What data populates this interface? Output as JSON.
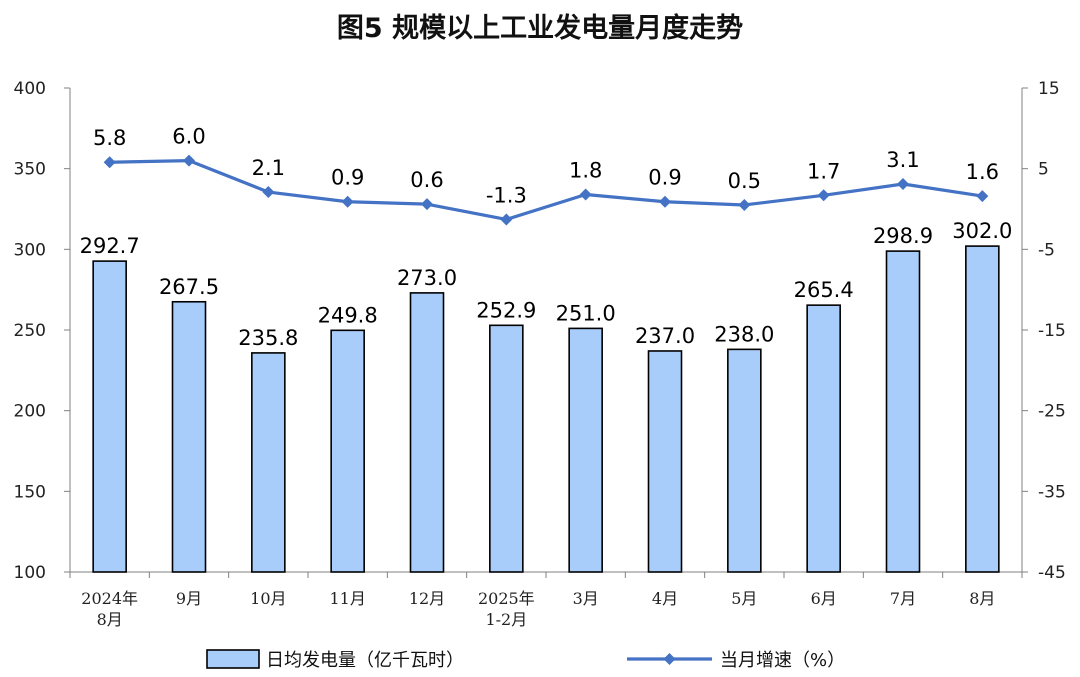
{
  "chart_data": {
    "type": "bar",
    "title": "图5  规模以上工业发电量月度走势",
    "categories": [
      [
        "2024年",
        "8月"
      ],
      [
        "9月"
      ],
      [
        "10月"
      ],
      [
        "11月"
      ],
      [
        "12月"
      ],
      [
        "2025年",
        "1-2月"
      ],
      [
        "3月"
      ],
      [
        "4月"
      ],
      [
        "5月"
      ],
      [
        "6月"
      ],
      [
        "7月"
      ],
      [
        "8月"
      ]
    ],
    "series": [
      {
        "name": "日均发电量（亿千瓦时）",
        "type": "bar",
        "axis": "left",
        "color": "#a9cdfa",
        "values": [
          292.7,
          267.5,
          235.8,
          249.8,
          273.0,
          252.9,
          251.0,
          237.0,
          238.0,
          265.4,
          298.9,
          302.0
        ],
        "labels": [
          "292.7",
          "267.5",
          "235.8",
          "249.8",
          "273.0",
          "252.9",
          "251.0",
          "237.0",
          "238.0",
          "265.4",
          "298.9",
          "302.0"
        ]
      },
      {
        "name": "当月增速（%）",
        "type": "line",
        "axis": "right",
        "color": "#4472c4",
        "values": [
          5.8,
          6.0,
          2.1,
          0.9,
          0.6,
          -1.3,
          1.8,
          0.9,
          0.5,
          1.7,
          3.1,
          1.6
        ],
        "labels": [
          "5.8",
          "6.0",
          "2.1",
          "0.9",
          "0.6",
          "-1.3",
          "1.8",
          "0.9",
          "0.5",
          "1.7",
          "3.1",
          "1.6"
        ]
      }
    ],
    "y_left": {
      "min": 100,
      "max": 400,
      "ticks": [
        "100",
        "150",
        "200",
        "250",
        "300",
        "350",
        "400"
      ]
    },
    "y_right": {
      "min": -45,
      "max": 15,
      "ticks": [
        "-45",
        "-35",
        "-25",
        "-15",
        "-5",
        "5",
        "15"
      ]
    },
    "grid": false,
    "legend_position": "bottom"
  }
}
